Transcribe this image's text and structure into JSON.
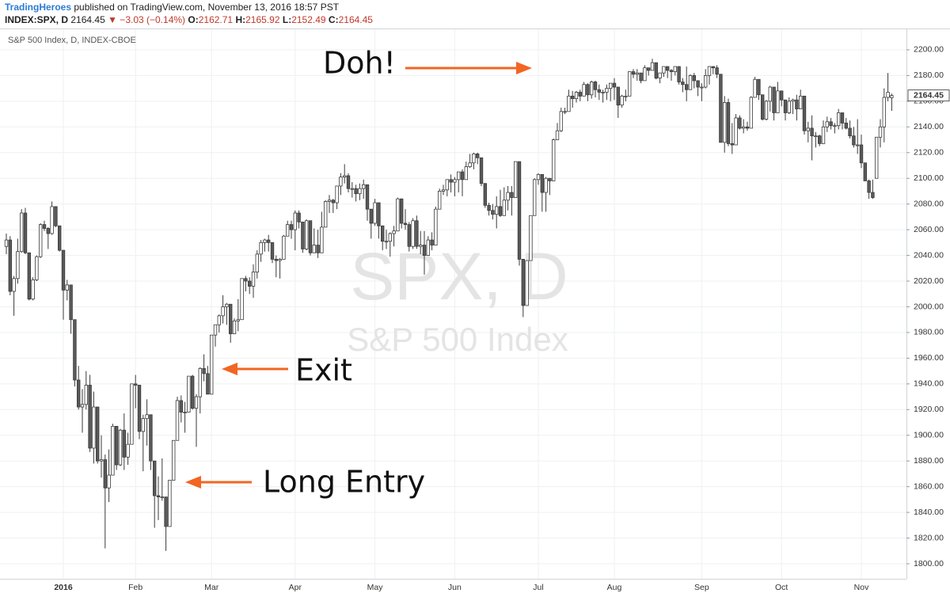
{
  "header": {
    "author": "TradingHeroes",
    "published": "published on TradingView.com, November 13, 2016 18:57 PST",
    "symbol": "INDEX:SPX, D",
    "change": "▼ −3.03 (−0.14%)",
    "ohlc_labels": [
      "O:",
      "H:",
      "L:",
      "C:"
    ]
  },
  "chart_data": {
    "type": "candlestick",
    "title": "S&P 500 Index, D, INDEX-CBOE",
    "watermark": [
      "SPX, D",
      "S&P 500 Index"
    ],
    "annotations": [
      "Doh!",
      "Exit",
      "Long Entry"
    ],
    "up_color": "#ffffff",
    "down_color": "#5a5a5a",
    "outline_color": "#3a3a3a",
    "grid": true,
    "ylim": [
      1788.3,
      2216.6
    ],
    "yticks": [
      {
        "value": 1800,
        "label": "1800.00"
      },
      {
        "value": 1820,
        "label": "1820.00"
      },
      {
        "value": 1840,
        "label": "1840.00"
      },
      {
        "value": 1860,
        "label": "1860.00"
      },
      {
        "value": 1880,
        "label": "1880.00"
      },
      {
        "value": 1900,
        "label": "1900.00"
      },
      {
        "value": 1920,
        "label": "1920.00"
      },
      {
        "value": 1940,
        "label": "1940.00"
      },
      {
        "value": 1960,
        "label": "1960.00"
      },
      {
        "value": 1980,
        "label": "1980.00"
      },
      {
        "value": 2000,
        "label": "2000.00"
      },
      {
        "value": 2020,
        "label": "2020.00"
      },
      {
        "value": 2040,
        "label": "2040.00"
      },
      {
        "value": 2060,
        "label": "2060.00"
      },
      {
        "value": 2080,
        "label": "2080.00"
      },
      {
        "value": 2100,
        "label": "2100.00"
      },
      {
        "value": 2120,
        "label": "2120.00"
      },
      {
        "value": 2140,
        "label": "2140.00"
      },
      {
        "value": 2160,
        "label": "2160.00"
      },
      {
        "value": 2180,
        "label": "2180.00"
      },
      {
        "value": 2200,
        "label": "2200.00"
      }
    ],
    "categories": [
      null,
      null,
      null,
      null,
      null,
      null,
      null,
      null,
      null,
      null,
      null,
      null,
      null,
      null,
      null,
      "2016",
      null,
      null,
      null,
      null,
      null,
      null,
      null,
      null,
      null,
      null,
      null,
      null,
      null,
      null,
      null,
      null,
      null,
      null,
      "Feb",
      null,
      null,
      null,
      null,
      null,
      null,
      null,
      null,
      null,
      null,
      null,
      null,
      null,
      null,
      null,
      null,
      null,
      null,
      null,
      "Mar",
      null,
      null,
      null,
      null,
      null,
      null,
      null,
      null,
      null,
      null,
      null,
      null,
      null,
      null,
      null,
      null,
      null,
      null,
      null,
      null,
      null,
      "Apr",
      null,
      null,
      null,
      null,
      null,
      null,
      null,
      null,
      null,
      null,
      null,
      null,
      null,
      null,
      null,
      null,
      null,
      null,
      null,
      null,
      "May",
      null,
      null,
      null,
      null,
      null,
      null,
      null,
      null,
      null,
      null,
      null,
      null,
      null,
      null,
      null,
      null,
      null,
      null,
      null,
      null,
      "Jun",
      null,
      null,
      null,
      null,
      null,
      null,
      null,
      null,
      null,
      null,
      null,
      null,
      null,
      null,
      null,
      null,
      null,
      null,
      null,
      null,
      null,
      "Jul",
      null,
      null,
      null,
      null,
      null,
      null,
      null,
      null,
      null,
      null,
      null,
      null,
      null,
      null,
      null,
      null,
      null,
      null,
      null,
      "Aug",
      null,
      null,
      null,
      null,
      null,
      null,
      null,
      null,
      null,
      null,
      null,
      null,
      null,
      null,
      null,
      null,
      null,
      null,
      null,
      null,
      null,
      null,
      "Sep",
      null,
      null,
      null,
      null,
      null,
      null,
      null,
      null,
      null,
      null,
      null,
      null,
      null,
      null,
      null,
      null,
      null,
      null,
      null,
      null,
      "Oct",
      null,
      null,
      null,
      null,
      null,
      null,
      null,
      null,
      null,
      null,
      null,
      null,
      null,
      null,
      null,
      null,
      null,
      null,
      null,
      null,
      "Nov",
      null,
      null,
      null,
      null,
      null,
      null,
      null,
      null
    ],
    "open": [
      2047,
      2052,
      2012,
      2022,
      2043,
      2073,
      2042,
      2006,
      2021,
      2039,
      2064,
      2061,
      2057,
      2078,
      2063,
      2044,
      2013,
      2017,
      1990,
      1943,
      1922,
      1924,
      1939,
      1890,
      1922,
      1880,
      1881,
      1859,
      1869,
      1907,
      1877,
      1904,
      1883,
      1893,
      1940,
      1939,
      1903,
      1913,
      1916,
      1880,
      1853,
      1852,
      1852,
      1829,
      1865,
      1896,
      1927,
      1918,
      1918,
      1946,
      1921,
      1930,
      1952,
      1948,
      1932,
      1978,
      1986,
      1993,
      2000,
      2002,
      1979,
      1989,
      1990,
      2022,
      2020,
      2016,
      2027,
      2041,
      2050,
      2052,
      2050,
      2037,
      2036,
      2037,
      2055,
      2064,
      2060,
      2073,
      2066,
      2045,
      2067,
      2042,
      2048,
      2042,
      2062,
      2082,
      2083,
      2081,
      2094,
      2101,
      2102,
      2092,
      2092,
      2088,
      2092,
      2095,
      2076,
      2065,
      2081,
      2063,
      2051,
      2051,
      2057,
      2059,
      2084,
      2065,
      2064,
      2047,
      2067,
      2047,
      2048,
      2040,
      2052,
      2048,
      2076,
      2090,
      2091,
      2099,
      2097,
      2099,
      2105,
      2099,
      2109,
      2112,
      2119,
      2116,
      2096,
      2079,
      2075,
      2072,
      2078,
      2071,
      2083,
      2089,
      2085,
      2113,
      2037,
      2001,
      2036,
      2071,
      2099,
      2103,
      2089,
      2100,
      2098,
      2130,
      2137,
      2152,
      2152,
      2164,
      2162,
      2167,
      2164,
      2173,
      2165,
      2175,
      2169,
      2167,
      2167,
      2170,
      2174,
      2171,
      2157,
      2164,
      2164,
      2183,
      2181,
      2182,
      2176,
      2186,
      2184,
      2190,
      2178,
      2182,
      2187,
      2184,
      2183,
      2187,
      2175,
      2173,
      2169,
      2180,
      2176,
      2171,
      2171,
      2180,
      2187,
      2186,
      2181,
      2128,
      2159,
      2127,
      2126,
      2147,
      2139,
      2140,
      2139,
      2163,
      2177,
      2165,
      2146,
      2160,
      2171,
      2151,
      2168,
      2161,
      2151,
      2160,
      2161,
      2154,
      2164,
      2137,
      2139,
      2133,
      2133,
      2127,
      2140,
      2144,
      2141,
      2141,
      2151,
      2143,
      2139,
      2133,
      2126,
      2126,
      2112,
      2098,
      2089,
      2100,
      2132,
      2140,
      2163,
      2162.71
    ],
    "high": [
      2057,
      2055,
      2024,
      2053,
      2076,
      2077,
      2042,
      2023,
      2040,
      2065,
      2067,
      2062,
      2082,
      2078,
      2063,
      2044,
      2021,
      2017,
      1990,
      1954,
      1936,
      1950,
      1947,
      1934,
      1922,
      1900,
      1885,
      1889,
      1909,
      1907,
      1905,
      1917,
      1902,
      1940,
      1947,
      1939,
      1916,
      1928,
      1916,
      1880,
      1868,
      1882,
      1852,
      1865,
      1896,
      1930,
      1931,
      1926,
      1946,
      1947,
      1932,
      1953,
      1963,
      1954,
      1978,
      1986,
      1994,
      2009,
      2003,
      2002,
      1991,
      2006,
      2022,
      2024,
      2023,
      2033,
      2044,
      2052,
      2053,
      2056,
      2050,
      2040,
      2038,
      2056,
      2067,
      2067,
      2075,
      2075,
      2066,
      2068,
      2067,
      2061,
      2060,
      2074,
      2083,
      2087,
      2084,
      2094,
      2104,
      2111,
      2104,
      2097,
      2095,
      2096,
      2099,
      2095,
      2076,
      2084,
      2081,
      2063,
      2060,
      2058,
      2063,
      2085,
      2084,
      2076,
      2066,
      2069,
      2071,
      2059,
      2059,
      2055,
      2058,
      2078,
      2092,
      2095,
      2099,
      2103,
      2101,
      2105,
      2107,
      2113,
      2119,
      2120,
      2120,
      2116,
      2096,
      2081,
      2080,
      2086,
      2091,
      2093,
      2094,
      2094,
      2113,
      2113,
      2037,
      2036,
      2071,
      2100,
      2104,
      2103,
      2101,
      2100,
      2131,
      2143,
      2155,
      2155,
      2169,
      2168,
      2168,
      2169,
      2175,
      2174,
      2176,
      2176,
      2173,
      2169,
      2173,
      2174,
      2178,
      2171,
      2165,
      2169,
      2183,
      2185,
      2185,
      2182,
      2188,
      2186,
      2193,
      2190,
      2182,
      2187,
      2187,
      2185,
      2187,
      2187,
      2178,
      2187,
      2181,
      2182,
      2176,
      2174,
      2185,
      2187,
      2187,
      2188,
      2181,
      2164,
      2162,
      2143,
      2150,
      2149,
      2146,
      2144,
      2164,
      2179,
      2177,
      2165,
      2161,
      2172,
      2171,
      2175,
      2168,
      2161,
      2163,
      2162,
      2165,
      2169,
      2164,
      2144,
      2149,
      2136,
      2134,
      2145,
      2148,
      2147,
      2143,
      2154,
      2151,
      2147,
      2145,
      2140,
      2146,
      2134,
      2112,
      2099,
      2099,
      2132,
      2146,
      2170,
      2182,
      2165.92
    ],
    "low": [
      2041,
      2009,
      1993,
      2018,
      2042,
      2041,
      2005,
      2005,
      2020,
      2038,
      2059,
      2045,
      2056,
      2062,
      2043,
      1990,
      2005,
      1979,
      1938,
      1920,
      1902,
      1920,
      1887,
      1878,
      1878,
      1867,
      1812,
      1848,
      1869,
      1873,
      1876,
      1873,
      1877,
      1893,
      1921,
      1897,
      1872,
      1892,
      1873,
      1828,
      1834,
      1849,
      1810,
      1829,
      1865,
      1896,
      1910,
      1902,
      1918,
      1920,
      1891,
      1917,
      1942,
      1932,
      1932,
      1969,
      1980,
      1987,
      1986,
      1972,
      1979,
      1981,
      1990,
      2012,
      2010,
      2007,
      2022,
      2035,
      2043,
      2043,
      2034,
      2023,
      2022,
      2037,
      2055,
      2053,
      2044,
      2061,
      2042,
      2044,
      2040,
      2042,
      2038,
      2042,
      2062,
      2073,
      2073,
      2076,
      2087,
      2096,
      2089,
      2085,
      2082,
      2083,
      2084,
      2067,
      2053,
      2063,
      2053,
      2044,
      2045,
      2039,
      2047,
      2059,
      2061,
      2060,
      2043,
      2045,
      2045,
      2041,
      2025,
      2040,
      2044,
      2048,
      2076,
      2087,
      2086,
      2089,
      2086,
      2089,
      2086,
      2099,
      2108,
      2107,
      2111,
      2094,
      2077,
      2071,
      2068,
      2061,
      2070,
      2071,
      2075,
      2071,
      2085,
      2032,
      1992,
      2001,
      2036,
      2071,
      2095,
      2074,
      2074,
      2087,
      2098,
      2130,
      2136,
      2150,
      2153,
      2155,
      2159,
      2160,
      2164,
      2160,
      2162,
      2163,
      2161,
      2159,
      2161,
      2160,
      2161,
      2147,
      2155,
      2160,
      2164,
      2178,
      2176,
      2174,
      2176,
      2180,
      2184,
      2177,
      2174,
      2179,
      2178,
      2176,
      2180,
      2173,
      2167,
      2160,
      2170,
      2170,
      2164,
      2160,
      2170,
      2173,
      2181,
      2178,
      2128,
      2120,
      2125,
      2119,
      2126,
      2138,
      2135,
      2137,
      2139,
      2163,
      2161,
      2145,
      2145,
      2152,
      2145,
      2151,
      2156,
      2145,
      2150,
      2150,
      2145,
      2154,
      2134,
      2128,
      2114,
      2124,
      2125,
      2127,
      2136,
      2138,
      2135,
      2138,
      2138,
      2138,
      2131,
      2124,
      2119,
      2108,
      2098,
      2084,
      2084,
      2100,
      2124,
      2128,
      2160,
      2152.49
    ],
    "close": [
      2052,
      2012,
      2022,
      2043,
      2073,
      2042,
      2006,
      2021,
      2039,
      2064,
      2061,
      2057,
      2078,
      2063,
      2044,
      2013,
      2017,
      1990,
      1943,
      1922,
      1924,
      1939,
      1890,
      1922,
      1880,
      1881,
      1859,
      1869,
      1907,
      1877,
      1904,
      1883,
      1893,
      1940,
      1939,
      1903,
      1913,
      1916,
      1880,
      1853,
      1852,
      1852,
      1829,
      1865,
      1896,
      1927,
      1918,
      1918,
      1946,
      1921,
      1930,
      1952,
      1948,
      1932,
      1978,
      1986,
      1993,
      2000,
      2002,
      1979,
      1989,
      1990,
      2022,
      2020,
      2016,
      2027,
      2041,
      2050,
      2052,
      2050,
      2037,
      2036,
      2037,
      2055,
      2064,
      2060,
      2073,
      2066,
      2045,
      2067,
      2042,
      2048,
      2042,
      2062,
      2082,
      2083,
      2081,
      2094,
      2101,
      2102,
      2092,
      2092,
      2088,
      2092,
      2095,
      2076,
      2065,
      2081,
      2063,
      2051,
      2051,
      2057,
      2059,
      2084,
      2065,
      2064,
      2047,
      2067,
      2047,
      2048,
      2040,
      2052,
      2048,
      2076,
      2090,
      2091,
      2099,
      2097,
      2099,
      2105,
      2099,
      2109,
      2112,
      2119,
      2116,
      2096,
      2079,
      2075,
      2072,
      2078,
      2071,
      2083,
      2089,
      2085,
      2113,
      2037,
      2001,
      2036,
      2071,
      2099,
      2103,
      2089,
      2100,
      2098,
      2130,
      2137,
      2152,
      2152,
      2164,
      2162,
      2167,
      2164,
      2173,
      2165,
      2175,
      2169,
      2167,
      2167,
      2170,
      2174,
      2171,
      2157,
      2164,
      2164,
      2183,
      2181,
      2182,
      2176,
      2186,
      2184,
      2190,
      2178,
      2182,
      2187,
      2184,
      2183,
      2187,
      2175,
      2173,
      2169,
      2180,
      2176,
      2171,
      2171,
      2180,
      2187,
      2186,
      2181,
      2128,
      2159,
      2127,
      2126,
      2147,
      2139,
      2140,
      2139,
      2163,
      2177,
      2165,
      2146,
      2160,
      2171,
      2151,
      2168,
      2161,
      2151,
      2160,
      2161,
      2154,
      2164,
      2137,
      2139,
      2133,
      2133,
      2127,
      2140,
      2144,
      2141,
      2141,
      2151,
      2143,
      2139,
      2133,
      2126,
      2126,
      2112,
      2098,
      2089,
      2085,
      2132,
      2140,
      2163,
      2167,
      2164.45
    ]
  }
}
